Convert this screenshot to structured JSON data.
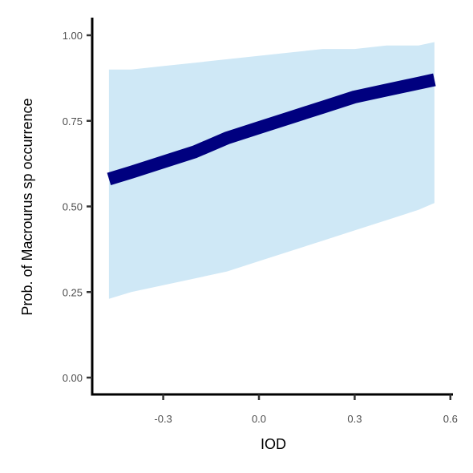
{
  "chart_data": {
    "type": "line",
    "xlabel": "IOD",
    "ylabel": "Prob. of  Macrourus sp  occurrence",
    "xlim": [
      -0.55,
      0.6
    ],
    "ylim": [
      0,
      1
    ],
    "x_ticks": [
      -0.3,
      0.0,
      0.3,
      0.6
    ],
    "x_tick_labels": [
      "-0.3",
      "0.0",
      "0.3",
      "0.6"
    ],
    "y_ticks": [
      0,
      0.25,
      0.5,
      0.75,
      1.0
    ],
    "y_tick_labels": [
      "0.00",
      "0.25",
      "0.50",
      "0.75",
      "1.00"
    ],
    "grid": false,
    "series": [
      {
        "x": [
          -0.47,
          -0.4,
          -0.3,
          -0.2,
          -0.1,
          0.0,
          0.1,
          0.2,
          0.3,
          0.4,
          0.5,
          0.55
        ],
        "y": [
          0.58,
          0.6,
          0.63,
          0.66,
          0.7,
          0.73,
          0.76,
          0.79,
          0.82,
          0.84,
          0.86,
          0.87
        ],
        "lower": [
          0.23,
          0.25,
          0.27,
          0.29,
          0.31,
          0.34,
          0.37,
          0.4,
          0.43,
          0.46,
          0.49,
          0.51
        ],
        "upper": [
          0.9,
          0.9,
          0.91,
          0.92,
          0.93,
          0.94,
          0.95,
          0.96,
          0.96,
          0.97,
          0.97,
          0.98
        ]
      }
    ],
    "colors": {
      "line": "#00007f",
      "ribbon": "#cfe8f6",
      "axis": "#000000",
      "tick_label": "#4d4d4d"
    }
  }
}
